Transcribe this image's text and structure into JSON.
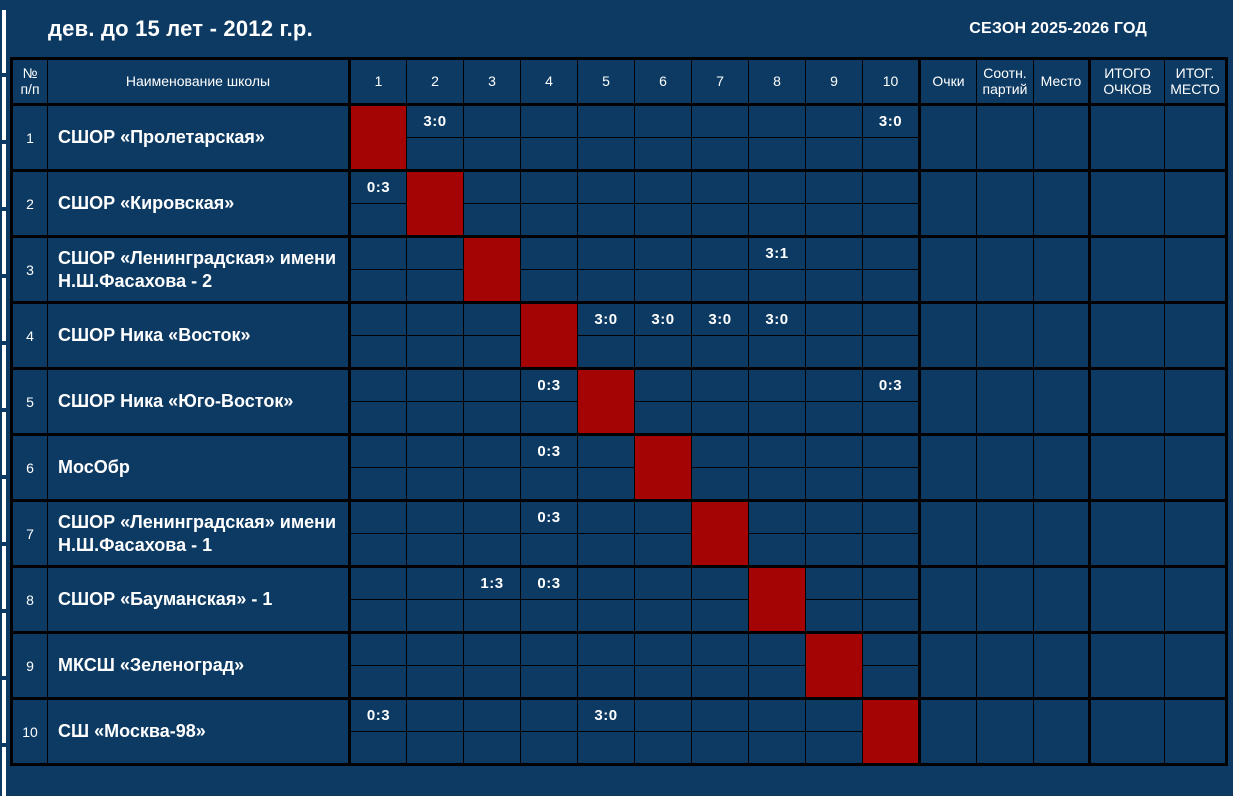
{
  "header": {
    "title": "дев. до 15 лет - 2012 г.р.",
    "season": "СЕЗОН 2025-2026 ГОД"
  },
  "colors": {
    "page_background": "#0d3a63",
    "diagonal_red": "#a40404",
    "grid_border": "#000000",
    "text": "#ffffff"
  },
  "table": {
    "headers": {
      "num": "№ п/п",
      "name": "Наименование школы",
      "rounds": [
        "1",
        "2",
        "3",
        "4",
        "5",
        "6",
        "7",
        "8",
        "9",
        "10"
      ],
      "stats": [
        "Очки",
        "Соотн. партий",
        "Место",
        "ИТОГО ОЧКОВ",
        "ИТОГ. МЕСТО"
      ]
    },
    "teams": [
      {
        "num": "1",
        "name": "СШОР «Пролетарская»",
        "results": {
          "2": "3:0",
          "10": "3:0"
        }
      },
      {
        "num": "2",
        "name": "СШОР «Кировская»",
        "results": {
          "1": "0:3"
        }
      },
      {
        "num": "3",
        "name": "СШОР «Ленинградская» имени Н.Ш.Фасахова - 2",
        "results": {
          "8": "3:1"
        }
      },
      {
        "num": "4",
        "name": "СШОР Ника «Восток»",
        "results": {
          "5": "3:0",
          "6": "3:0",
          "7": "3:0",
          "8": "3:0"
        }
      },
      {
        "num": "5",
        "name": "СШОР Ника «Юго-Восток»",
        "results": {
          "4": "0:3",
          "10": "0:3"
        }
      },
      {
        "num": "6",
        "name": "МосОбр",
        "results": {
          "4": "0:3"
        }
      },
      {
        "num": "7",
        "name": "СШОР «Ленинградская» имени Н.Ш.Фасахова - 1",
        "results": {
          "4": "0:3"
        }
      },
      {
        "num": "8",
        "name": "СШОР «Бауманская» - 1",
        "results": {
          "3": "1:3",
          "4": "0:3"
        }
      },
      {
        "num": "9",
        "name": "МКСШ «Зеленоград»",
        "results": {}
      },
      {
        "num": "10",
        "name": "СШ «Москва-98»",
        "results": {
          "1": "0:3",
          "5": "3:0"
        }
      }
    ]
  }
}
